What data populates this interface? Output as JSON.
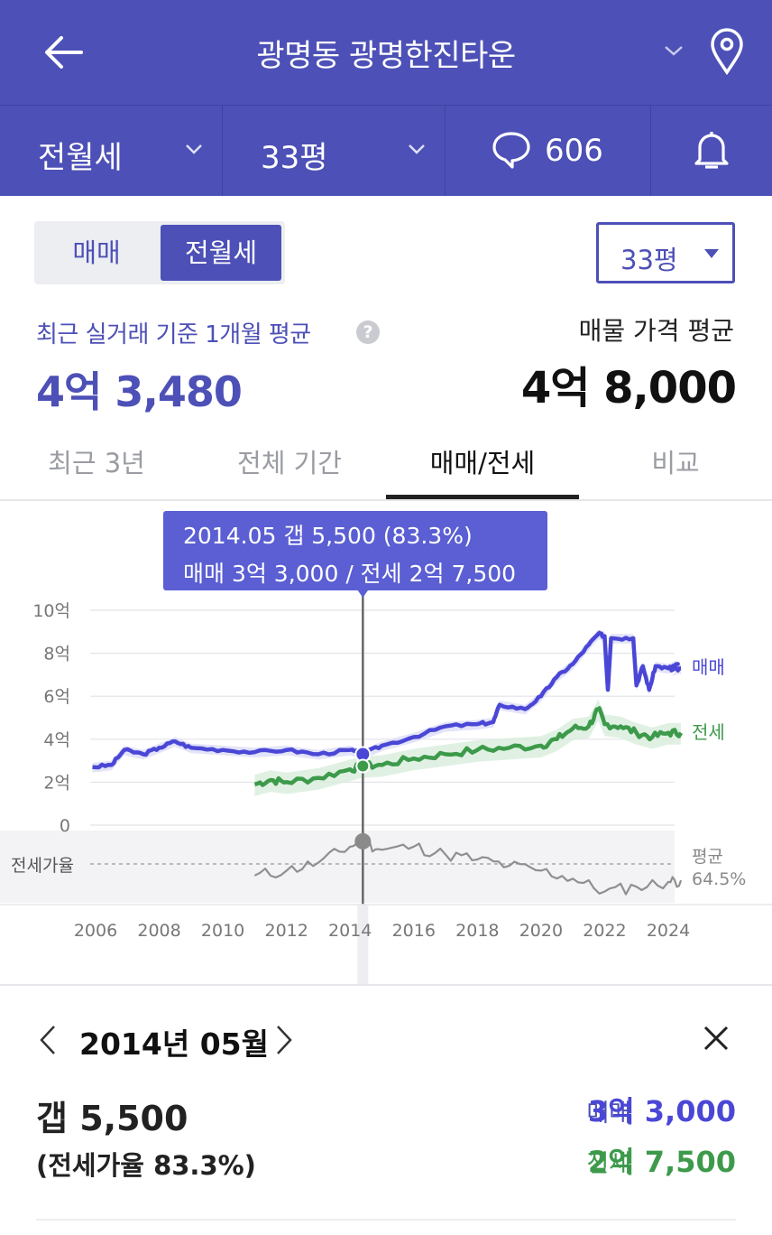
{
  "header": {
    "title": "광명동 광명한진타운",
    "deal_type": "전월세",
    "size": "33평",
    "comments_count": "606",
    "colors": {
      "brand": "#4d50b6",
      "sale": "#4a47d6",
      "jeonse": "#3d9a4b"
    }
  },
  "toggle": {
    "option_sale": "매매",
    "option_rent": "전월세",
    "selected": "전월세"
  },
  "size_select": {
    "value": "33평"
  },
  "summary": {
    "avg_label": "최근 실거래 기준 1개월 평균",
    "help_icon": "?",
    "avg_value": "4억 3,480",
    "listing_label": "매물 가격 평균",
    "listing_value": "4억 8,000"
  },
  "tabs": [
    {
      "label": "최근 3년"
    },
    {
      "label": "전체 기간"
    },
    {
      "label": "매매/전세"
    },
    {
      "label": "비교"
    }
  ],
  "tooltip": {
    "line1": "2014.05  갭 5,500 (83.3%)",
    "line2": "매매 3억 3,000 / 전세 2억 7,500"
  },
  "chart_data": {
    "type": "line",
    "x_unit": "year",
    "y_unit": "억",
    "ylim": [
      0,
      10
    ],
    "y_ticks": [
      "10억",
      "8억",
      "6억",
      "4억",
      "2억",
      "0"
    ],
    "x_ticks": [
      "2006",
      "2008",
      "2010",
      "2012",
      "2014",
      "2016",
      "2018",
      "2020",
      "2022",
      "2024"
    ],
    "series": [
      {
        "name": "매매",
        "points": [
          [
            2005.9,
            2.7
          ],
          [
            2006.5,
            2.8
          ],
          [
            2006.9,
            3.5
          ],
          [
            2007.5,
            3.3
          ],
          [
            2008.0,
            3.6
          ],
          [
            2008.5,
            3.9
          ],
          [
            2009.0,
            3.6
          ],
          [
            2010.0,
            3.5
          ],
          [
            2011.0,
            3.4
          ],
          [
            2012.0,
            3.5
          ],
          [
            2013.0,
            3.3
          ],
          [
            2014.0,
            3.5
          ],
          [
            2014.4,
            3.3
          ],
          [
            2015.0,
            3.7
          ],
          [
            2016.0,
            4.1
          ],
          [
            2017.0,
            4.6
          ],
          [
            2018.0,
            4.7
          ],
          [
            2018.5,
            4.8
          ],
          [
            2018.7,
            5.6
          ],
          [
            2019.5,
            5.4
          ],
          [
            2020.0,
            6.0
          ],
          [
            2020.5,
            6.9
          ],
          [
            2021.0,
            7.5
          ],
          [
            2021.5,
            8.4
          ],
          [
            2021.8,
            8.9
          ],
          [
            2022.0,
            8.8
          ],
          [
            2022.1,
            6.3
          ],
          [
            2022.2,
            8.7
          ],
          [
            2022.9,
            8.7
          ],
          [
            2023.0,
            6.5
          ],
          [
            2023.2,
            7.4
          ],
          [
            2023.4,
            6.3
          ],
          [
            2023.6,
            7.4
          ],
          [
            2024.0,
            7.3
          ],
          [
            2024.3,
            7.5
          ],
          [
            2024.1,
            7.2
          ],
          [
            2024.4,
            7.3
          ]
        ]
      },
      {
        "name": "전세",
        "points": [
          [
            2011.0,
            1.9
          ],
          [
            2011.5,
            2.1
          ],
          [
            2012.0,
            2.0
          ],
          [
            2013.0,
            2.2
          ],
          [
            2014.0,
            2.6
          ],
          [
            2014.4,
            2.75
          ],
          [
            2015.0,
            2.8
          ],
          [
            2016.0,
            3.1
          ],
          [
            2017.0,
            3.3
          ],
          [
            2018.0,
            3.5
          ],
          [
            2019.0,
            3.6
          ],
          [
            2020.0,
            3.7
          ],
          [
            2020.5,
            4.0
          ],
          [
            2021.0,
            4.5
          ],
          [
            2021.5,
            4.6
          ],
          [
            2021.8,
            5.4
          ],
          [
            2022.0,
            4.7
          ],
          [
            2022.5,
            4.6
          ],
          [
            2023.0,
            4.3
          ],
          [
            2023.5,
            4.1
          ],
          [
            2024.0,
            4.3
          ],
          [
            2024.4,
            4.3
          ]
        ]
      },
      {
        "name": "전세가율",
        "points": [
          [
            2011.0,
            62
          ],
          [
            2012.0,
            65
          ],
          [
            2013.0,
            70
          ],
          [
            2014.0,
            80
          ],
          [
            2014.4,
            83.3
          ],
          [
            2015.0,
            78
          ],
          [
            2016.0,
            80
          ],
          [
            2017.0,
            75
          ],
          [
            2018.0,
            72
          ],
          [
            2019.0,
            68
          ],
          [
            2020.0,
            65
          ],
          [
            2021.0,
            60
          ],
          [
            2022.0,
            52
          ],
          [
            2023.0,
            55
          ],
          [
            2024.0,
            58
          ],
          [
            2024.4,
            59
          ]
        ]
      }
    ],
    "ratio_label": "전세가율",
    "ratio_avg_label": "평균",
    "ratio_avg_value": "64.5%",
    "selected_x": 2014.4
  },
  "detail": {
    "date": "2014년 05월",
    "gap": "갭 5,500",
    "ratio": "(전세가율 83.3%)",
    "sale_label": "매매",
    "sale_value": "3억 3,000",
    "jeonse_label": "전세",
    "jeonse_value": "2억 7,500"
  }
}
